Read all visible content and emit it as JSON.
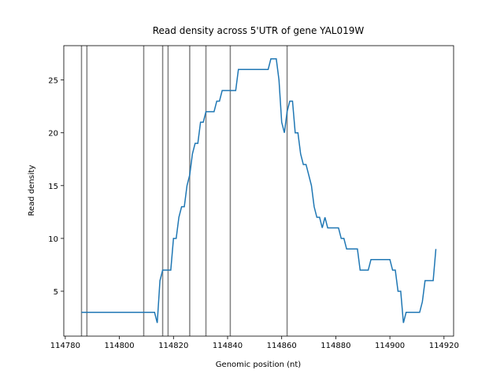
{
  "chart_data": {
    "type": "line",
    "title": "Read density across 5'UTR of gene YAL019W",
    "xlabel": "Genomic position (nt)",
    "ylabel": "Read density",
    "x": [
      114786,
      114787,
      114788,
      114789,
      114790,
      114791,
      114792,
      114793,
      114794,
      114795,
      114796,
      114797,
      114798,
      114799,
      114800,
      114801,
      114802,
      114803,
      114804,
      114805,
      114806,
      114807,
      114808,
      114809,
      114810,
      114811,
      114812,
      114813,
      114814,
      114815,
      114816,
      114817,
      114818,
      114819,
      114820,
      114821,
      114822,
      114823,
      114824,
      114825,
      114826,
      114827,
      114828,
      114829,
      114830,
      114831,
      114832,
      114833,
      114834,
      114835,
      114836,
      114837,
      114838,
      114839,
      114840,
      114841,
      114842,
      114843,
      114844,
      114845,
      114846,
      114847,
      114848,
      114849,
      114850,
      114851,
      114852,
      114853,
      114854,
      114855,
      114856,
      114857,
      114858,
      114859,
      114860,
      114861,
      114862,
      114863,
      114864,
      114865,
      114866,
      114867,
      114868,
      114869,
      114870,
      114871,
      114872,
      114873,
      114874,
      114875,
      114876,
      114877,
      114878,
      114879,
      114880,
      114881,
      114882,
      114883,
      114884,
      114885,
      114886,
      114887,
      114888,
      114889,
      114890,
      114891,
      114892,
      114893,
      114894,
      114895,
      114896,
      114897,
      114898,
      114899,
      114900,
      114901,
      114902,
      114903,
      114904,
      114905,
      114906,
      114907,
      114908,
      114909,
      114910,
      114911,
      114912,
      114913,
      114914,
      114915,
      114916,
      114917
    ],
    "values": [
      3,
      3,
      3,
      3,
      3,
      3,
      3,
      3,
      3,
      3,
      3,
      3,
      3,
      3,
      3,
      3,
      3,
      3,
      3,
      3,
      3,
      3,
      3,
      3,
      3,
      3,
      3,
      3,
      2,
      6,
      7,
      7,
      7,
      7,
      10,
      10,
      12,
      13,
      13,
      15,
      16,
      18,
      19,
      19,
      21,
      21,
      22,
      22,
      22,
      22,
      23,
      23,
      24,
      24,
      24,
      24,
      24,
      24,
      26,
      26,
      26,
      26,
      26,
      26,
      26,
      26,
      26,
      26,
      26,
      26,
      27,
      27,
      27,
      25,
      21,
      20,
      22,
      23,
      23,
      20,
      20,
      18,
      17,
      17,
      16,
      15,
      13,
      12,
      12,
      11,
      12,
      11,
      11,
      11,
      11,
      11,
      10,
      10,
      9,
      9,
      9,
      9,
      9,
      7,
      7,
      7,
      7,
      8,
      8,
      8,
      8,
      8,
      8,
      8,
      8,
      7,
      7,
      5,
      5,
      2,
      3,
      3,
      3,
      3,
      3,
      3,
      4,
      6,
      6,
      6,
      6,
      9
    ],
    "color": "#1f77b4",
    "vlines": [
      114786,
      114788,
      114809,
      114816,
      114818,
      114826,
      114832,
      114841,
      114862
    ],
    "vline_color": "#808080",
    "xlim": [
      114779.45,
      114923.55
    ],
    "ylim": [
      0.75,
      28.25
    ],
    "xticks": [
      114780,
      114800,
      114820,
      114840,
      114860,
      114880,
      114900,
      114920
    ],
    "yticks": [
      5,
      10,
      15,
      20,
      25
    ]
  }
}
